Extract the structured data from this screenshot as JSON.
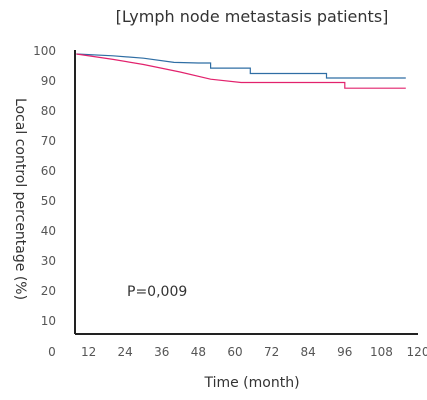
{
  "chart_data": {
    "type": "line",
    "title": "[Lymph node metastasis patients]",
    "xlabel": "Time (month)",
    "ylabel": "Local control percentage (%)",
    "xlim": [
      0,
      120
    ],
    "ylim": [
      0,
      100
    ],
    "x_ticks": [
      "0",
      "12",
      "24",
      "36",
      "48",
      "60",
      "72",
      "84",
      "96",
      "108",
      "120"
    ],
    "y_ticks": [
      "10",
      "20",
      "30",
      "40",
      "50",
      "60",
      "70",
      "80",
      "90",
      "100"
    ],
    "annotation": "P=0,009",
    "series": [
      {
        "color": "#2f6ea4",
        "points": [
          [
            8,
            99
          ],
          [
            20,
            98.4
          ],
          [
            30,
            97.6
          ],
          [
            40,
            96.2
          ],
          [
            48,
            96
          ],
          [
            52,
            96
          ],
          [
            52,
            94.3
          ],
          [
            65,
            94.3
          ],
          [
            65,
            92.5
          ],
          [
            90,
            92.5
          ],
          [
            90,
            91
          ],
          [
            116,
            91
          ]
        ]
      },
      {
        "color": "#e2226d",
        "points": [
          [
            8,
            99
          ],
          [
            20,
            97.2
          ],
          [
            30,
            95.5
          ],
          [
            42,
            93
          ],
          [
            52,
            90.6
          ],
          [
            62,
            89.5
          ],
          [
            96,
            89.5
          ],
          [
            96,
            87.6
          ],
          [
            116,
            87.6
          ]
        ]
      }
    ]
  }
}
